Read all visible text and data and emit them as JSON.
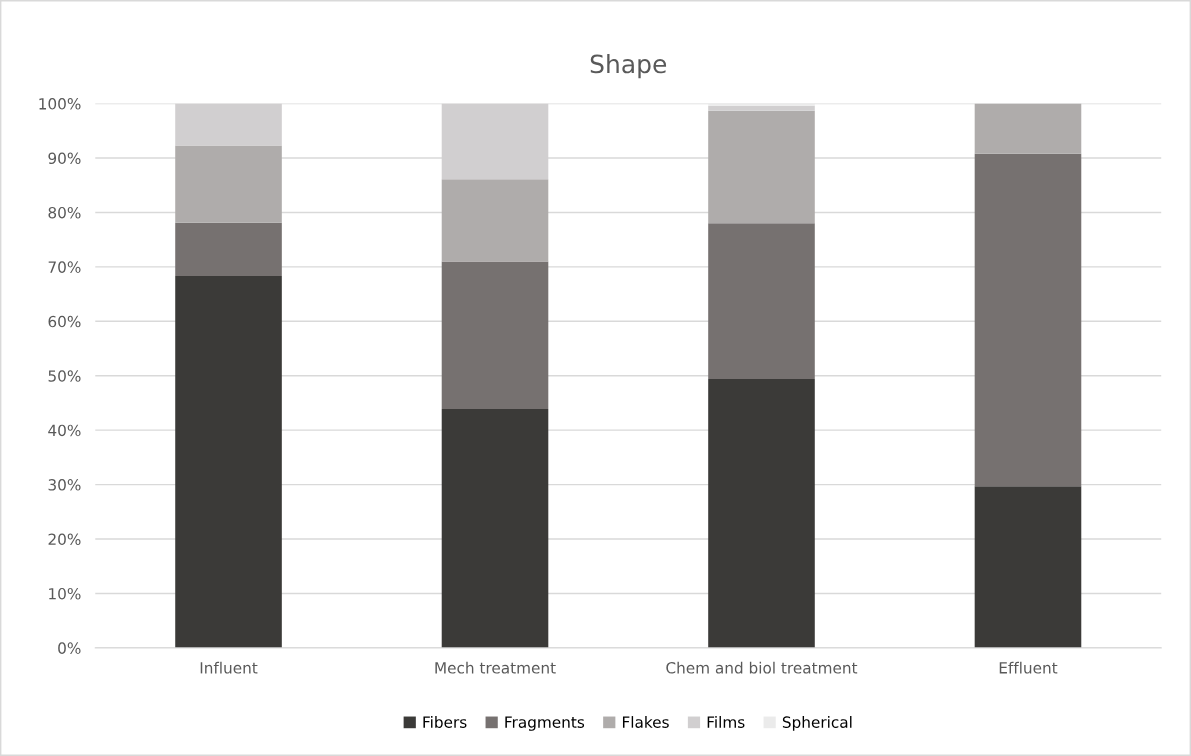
{
  "chart_data": {
    "type": "bar",
    "title": "Shape",
    "stacked": true,
    "categories": [
      "Influent",
      "Mech treatment",
      "Chem and biol treatment",
      "Effluent"
    ],
    "series": [
      {
        "name": "Fibers",
        "color": "#3b3a38",
        "values": [
          68.3,
          43.9,
          49.4,
          29.7
        ]
      },
      {
        "name": "Fragments",
        "color": "#767170",
        "values": [
          9.8,
          27.1,
          28.6,
          61.1
        ]
      },
      {
        "name": "Flakes",
        "color": "#afacab",
        "values": [
          14.2,
          15.1,
          20.7,
          9.2
        ]
      },
      {
        "name": "Films",
        "color": "#d1cfd0",
        "values": [
          7.7,
          13.9,
          0.9,
          0
        ]
      },
      {
        "name": "Spherical",
        "color": "#ebebeb",
        "values": [
          0,
          0,
          0.4,
          0
        ]
      }
    ],
    "ylim": [
      0,
      100
    ],
    "yticks": [
      {
        "value": 0,
        "label": "0%"
      },
      {
        "value": 10,
        "label": "10%"
      },
      {
        "value": 20,
        "label": "20%"
      },
      {
        "value": 30,
        "label": "30%"
      },
      {
        "value": 40,
        "label": "40%"
      },
      {
        "value": 50,
        "label": "50%"
      },
      {
        "value": 60,
        "label": "60%"
      },
      {
        "value": 70,
        "label": "70%"
      },
      {
        "value": 80,
        "label": "80%"
      },
      {
        "value": 90,
        "label": "90%"
      },
      {
        "value": 100,
        "label": "100%"
      }
    ],
    "grid": "y",
    "legend": "bottom"
  }
}
